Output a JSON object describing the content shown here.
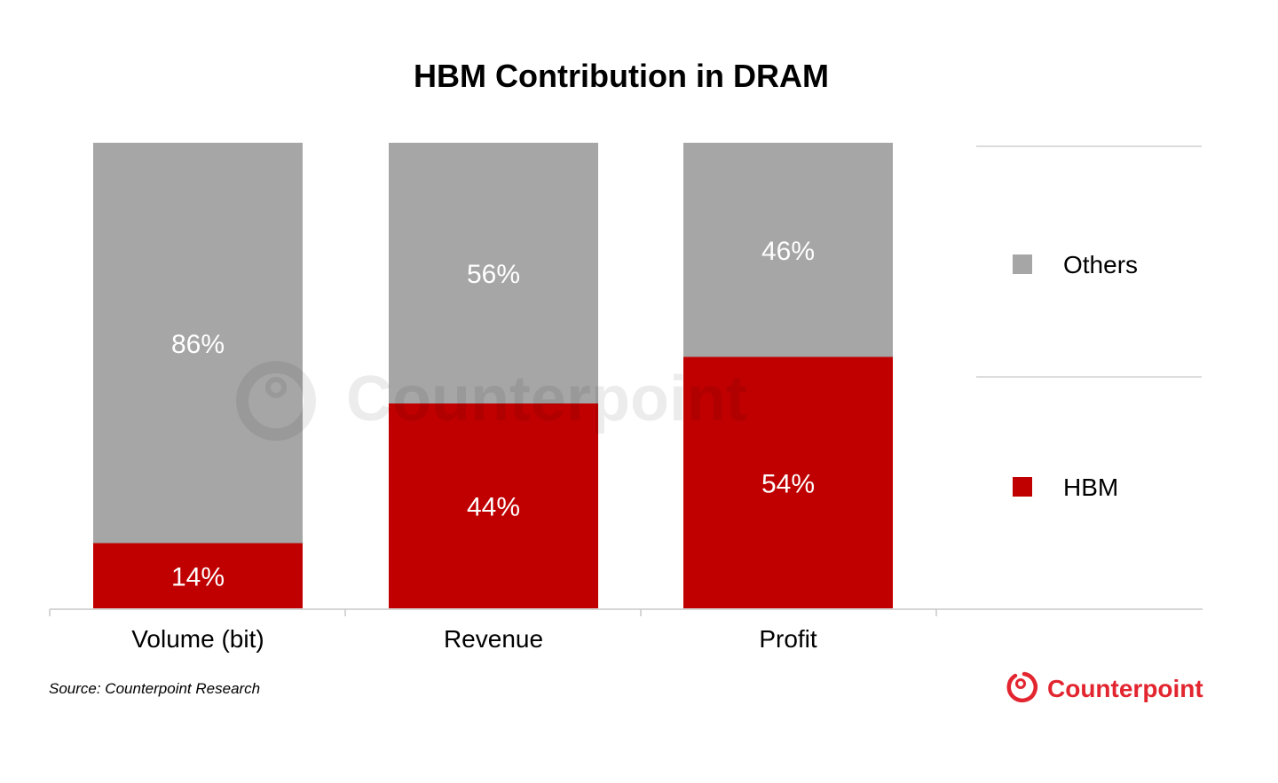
{
  "chart_data": {
    "type": "bar",
    "stacked": true,
    "percent_stacked": true,
    "title": "HBM Contribution in DRAM",
    "categories": [
      "Volume (bit)",
      "Revenue",
      "Profit"
    ],
    "series": [
      {
        "name": "HBM",
        "values": [
          14,
          44,
          54
        ],
        "labels": [
          "14%",
          "44%",
          "54%"
        ],
        "color": "#c00000"
      },
      {
        "name": "Others",
        "values": [
          86,
          56,
          46
        ],
        "labels": [
          "86%",
          "56%",
          "46%"
        ],
        "color": "#a6a6a6"
      }
    ],
    "ylim": [
      0,
      100
    ],
    "grid": false,
    "legend_position": "right",
    "legend_order": [
      "Others",
      "HBM"
    ],
    "source": "Source: Counterpoint Research",
    "logo_text": "Counterpoint",
    "watermark_text": "Counterpoint",
    "accent_color": "#e2252f"
  }
}
